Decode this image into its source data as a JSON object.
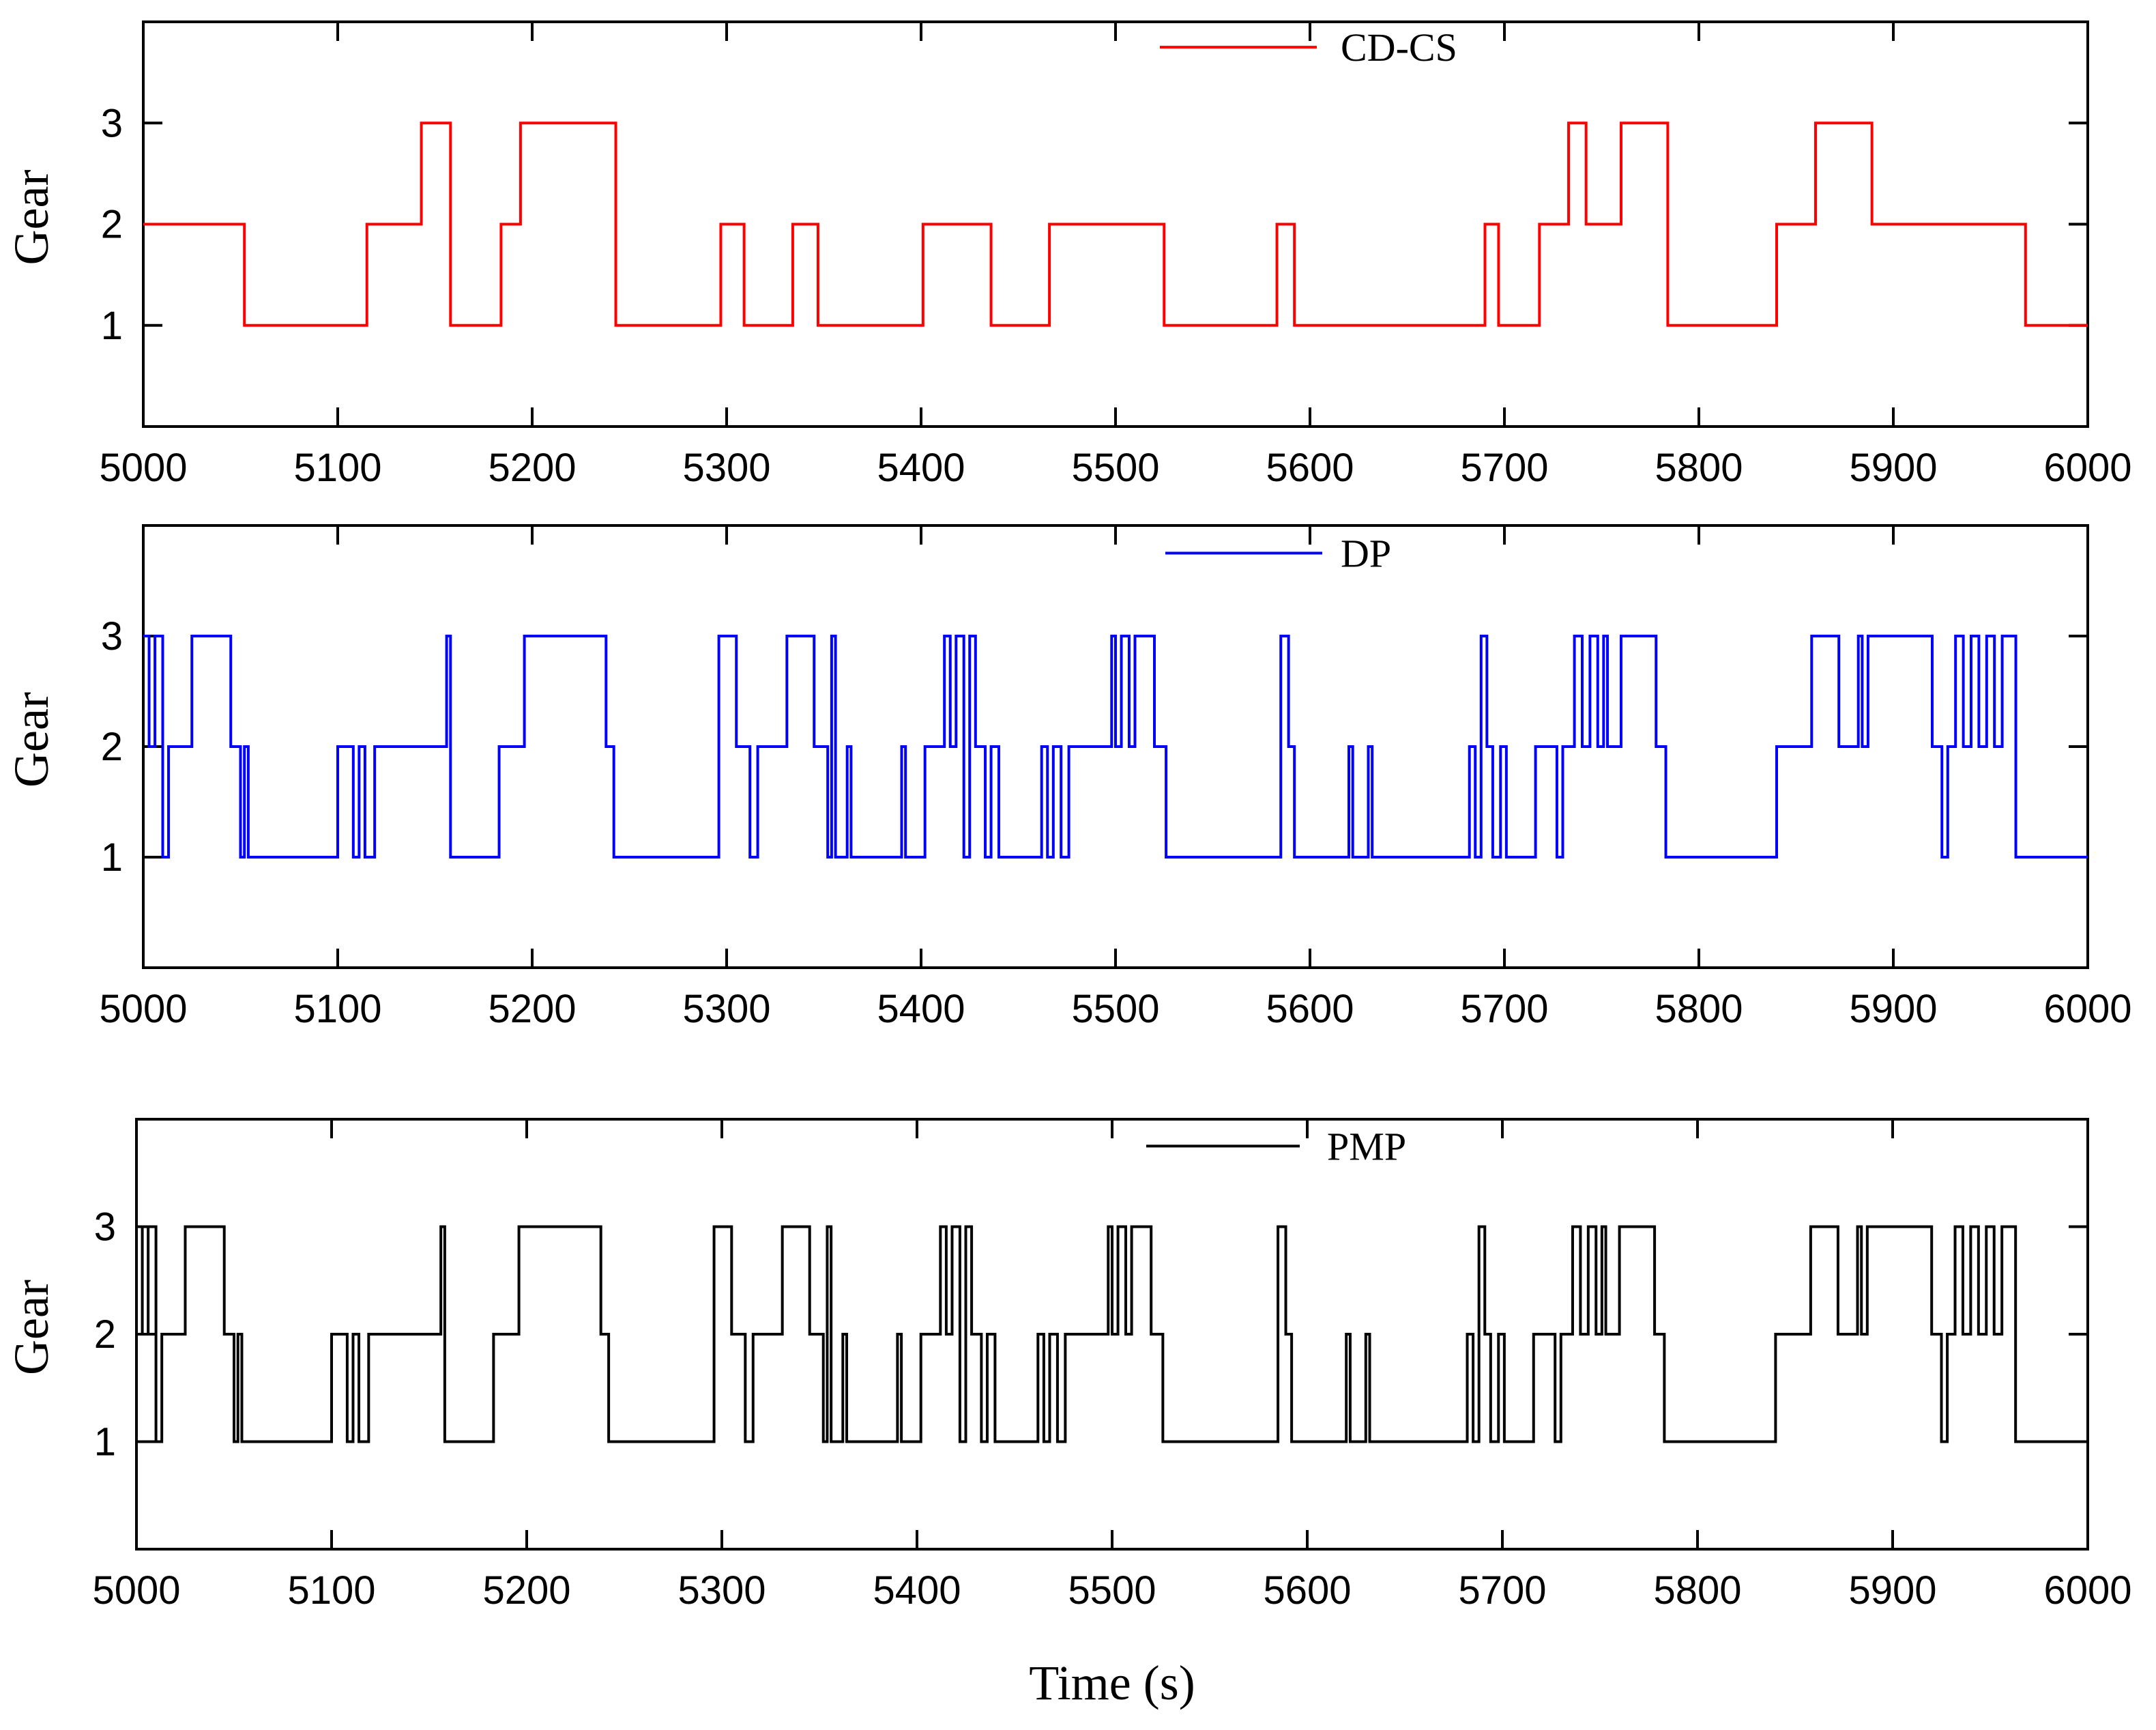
{
  "chart_data": [
    {
      "type": "line",
      "series_name": "CD-CS",
      "color": "#ff0000",
      "ylabel": "Gear",
      "xlabel": "",
      "xlim": [
        5000,
        6000
      ],
      "ylim": [
        0,
        4
      ],
      "xticks": [
        5000,
        5100,
        5200,
        5300,
        5400,
        5500,
        5600,
        5700,
        5800,
        5900,
        6000
      ],
      "xtick_labels": [
        "5000",
        "5100",
        "5200",
        "5300",
        "5400",
        "5500",
        "5600",
        "5700",
        "5800",
        "5900",
        "6000"
      ],
      "yticks": [
        1,
        2,
        3
      ],
      "ytick_labels": [
        "1",
        "2",
        "3"
      ],
      "legend": "top-center",
      "steps": [
        [
          5000,
          2
        ],
        [
          5052,
          1
        ],
        [
          5115,
          2
        ],
        [
          5143,
          3
        ],
        [
          5158,
          1
        ],
        [
          5184,
          2
        ],
        [
          5194,
          3
        ],
        [
          5243,
          1
        ],
        [
          5297,
          2
        ],
        [
          5309,
          1
        ],
        [
          5334,
          2
        ],
        [
          5347,
          1
        ],
        [
          5401,
          2
        ],
        [
          5436,
          1
        ],
        [
          5466,
          2
        ],
        [
          5525,
          1
        ],
        [
          5583,
          2
        ],
        [
          5592,
          1
        ],
        [
          5690,
          2
        ],
        [
          5697,
          1
        ],
        [
          5718,
          2
        ],
        [
          5733,
          3
        ],
        [
          5742,
          2
        ],
        [
          5760,
          3
        ],
        [
          5784,
          1
        ],
        [
          5840,
          2
        ],
        [
          5860,
          3
        ],
        [
          5889,
          2
        ],
        [
          5968,
          1
        ],
        [
          6000,
          1
        ]
      ]
    },
    {
      "type": "line",
      "series_name": "DP",
      "color": "#0000ff",
      "ylabel": "Gear",
      "xlabel": "",
      "xlim": [
        5000,
        6000
      ],
      "ylim": [
        0,
        4
      ],
      "xticks": [
        5000,
        5100,
        5200,
        5300,
        5400,
        5500,
        5600,
        5700,
        5800,
        5900,
        6000
      ],
      "xtick_labels": [
        "5000",
        "5100",
        "5200",
        "5300",
        "5400",
        "5500",
        "5600",
        "5700",
        "5800",
        "5900",
        "6000"
      ],
      "yticks": [
        1,
        2,
        3
      ],
      "ytick_labels": [
        "1",
        "2",
        "3"
      ],
      "legend": "top-center",
      "steps": [
        [
          5000,
          3
        ],
        [
          5003,
          2
        ],
        [
          5006,
          3
        ],
        [
          5010,
          1
        ],
        [
          5013,
          2
        ],
        [
          5025,
          3
        ],
        [
          5045,
          2
        ],
        [
          5050,
          1
        ],
        [
          5052,
          2
        ],
        [
          5054,
          1
        ],
        [
          5100,
          2
        ],
        [
          5108,
          1
        ],
        [
          5111,
          2
        ],
        [
          5114,
          1
        ],
        [
          5119,
          2
        ],
        [
          5156,
          3
        ],
        [
          5158,
          1
        ],
        [
          5183,
          2
        ],
        [
          5196,
          3
        ],
        [
          5238,
          2
        ],
        [
          5242,
          1
        ],
        [
          5296,
          3
        ],
        [
          5305,
          2
        ],
        [
          5312,
          1
        ],
        [
          5316,
          2
        ],
        [
          5331,
          3
        ],
        [
          5345,
          2
        ],
        [
          5352,
          1
        ],
        [
          5354,
          3
        ],
        [
          5356,
          1
        ],
        [
          5362,
          2
        ],
        [
          5364,
          1
        ],
        [
          5390,
          2
        ],
        [
          5392,
          1
        ],
        [
          5402,
          2
        ],
        [
          5412,
          3
        ],
        [
          5415,
          2
        ],
        [
          5418,
          3
        ],
        [
          5422,
          1
        ],
        [
          5425,
          3
        ],
        [
          5428,
          2
        ],
        [
          5433,
          1
        ],
        [
          5436,
          2
        ],
        [
          5440,
          1
        ],
        [
          5462,
          2
        ],
        [
          5465,
          1
        ],
        [
          5468,
          2
        ],
        [
          5472,
          1
        ],
        [
          5476,
          2
        ],
        [
          5498,
          3
        ],
        [
          5500,
          2
        ],
        [
          5503,
          3
        ],
        [
          5507,
          2
        ],
        [
          5510,
          3
        ],
        [
          5520,
          2
        ],
        [
          5526,
          1
        ],
        [
          5585,
          3
        ],
        [
          5589,
          2
        ],
        [
          5592,
          1
        ],
        [
          5620,
          2
        ],
        [
          5622,
          1
        ],
        [
          5630,
          2
        ],
        [
          5632,
          1
        ],
        [
          5682,
          2
        ],
        [
          5685,
          1
        ],
        [
          5688,
          3
        ],
        [
          5691,
          2
        ],
        [
          5694,
          1
        ],
        [
          5698,
          2
        ],
        [
          5701,
          1
        ],
        [
          5716,
          2
        ],
        [
          5727,
          1
        ],
        [
          5730,
          2
        ],
        [
          5736,
          3
        ],
        [
          5740,
          2
        ],
        [
          5744,
          3
        ],
        [
          5748,
          2
        ],
        [
          5751,
          3
        ],
        [
          5753,
          2
        ],
        [
          5760,
          3
        ],
        [
          5778,
          2
        ],
        [
          5783,
          1
        ],
        [
          5840,
          2
        ],
        [
          5858,
          3
        ],
        [
          5872,
          2
        ],
        [
          5882,
          3
        ],
        [
          5884,
          2
        ],
        [
          5887,
          3
        ],
        [
          5920,
          2
        ],
        [
          5925,
          1
        ],
        [
          5928,
          2
        ],
        [
          5932,
          3
        ],
        [
          5936,
          2
        ],
        [
          5940,
          3
        ],
        [
          5944,
          2
        ],
        [
          5948,
          3
        ],
        [
          5952,
          2
        ],
        [
          5956,
          3
        ],
        [
          5963,
          1
        ],
        [
          6000,
          1
        ]
      ]
    },
    {
      "type": "line",
      "series_name": "PMP",
      "color": "#000000",
      "ylabel": "Gear",
      "xlabel": "Time (s)",
      "xlim": [
        5000,
        6000
      ],
      "ylim": [
        0,
        4
      ],
      "xticks": [
        5000,
        5100,
        5200,
        5300,
        5400,
        5500,
        5600,
        5700,
        5800,
        5900,
        6000
      ],
      "xtick_labels": [
        "5000",
        "5100",
        "5200",
        "5300",
        "5400",
        "5500",
        "5600",
        "5700",
        "5800",
        "5900",
        "6000"
      ],
      "yticks": [
        1,
        2,
        3
      ],
      "ytick_labels": [
        "1",
        "2",
        "3"
      ],
      "legend": "top-center",
      "steps": [
        [
          5000,
          3
        ],
        [
          5003,
          2
        ],
        [
          5006,
          3
        ],
        [
          5010,
          1
        ],
        [
          5013,
          2
        ],
        [
          5025,
          3
        ],
        [
          5045,
          2
        ],
        [
          5050,
          1
        ],
        [
          5052,
          2
        ],
        [
          5054,
          1
        ],
        [
          5100,
          2
        ],
        [
          5108,
          1
        ],
        [
          5111,
          2
        ],
        [
          5114,
          1
        ],
        [
          5119,
          2
        ],
        [
          5156,
          3
        ],
        [
          5158,
          1
        ],
        [
          5183,
          2
        ],
        [
          5196,
          3
        ],
        [
          5238,
          2
        ],
        [
          5242,
          1
        ],
        [
          5296,
          3
        ],
        [
          5305,
          2
        ],
        [
          5312,
          1
        ],
        [
          5316,
          2
        ],
        [
          5331,
          3
        ],
        [
          5345,
          2
        ],
        [
          5352,
          1
        ],
        [
          5354,
          3
        ],
        [
          5356,
          1
        ],
        [
          5362,
          2
        ],
        [
          5364,
          1
        ],
        [
          5390,
          2
        ],
        [
          5392,
          1
        ],
        [
          5402,
          2
        ],
        [
          5412,
          3
        ],
        [
          5415,
          2
        ],
        [
          5418,
          3
        ],
        [
          5422,
          1
        ],
        [
          5425,
          3
        ],
        [
          5428,
          2
        ],
        [
          5433,
          1
        ],
        [
          5436,
          2
        ],
        [
          5440,
          1
        ],
        [
          5462,
          2
        ],
        [
          5465,
          1
        ],
        [
          5468,
          2
        ],
        [
          5472,
          1
        ],
        [
          5476,
          2
        ],
        [
          5498,
          3
        ],
        [
          5500,
          2
        ],
        [
          5503,
          3
        ],
        [
          5507,
          2
        ],
        [
          5510,
          3
        ],
        [
          5520,
          2
        ],
        [
          5526,
          1
        ],
        [
          5585,
          3
        ],
        [
          5589,
          2
        ],
        [
          5592,
          1
        ],
        [
          5620,
          2
        ],
        [
          5622,
          1
        ],
        [
          5630,
          2
        ],
        [
          5632,
          1
        ],
        [
          5682,
          2
        ],
        [
          5685,
          1
        ],
        [
          5688,
          3
        ],
        [
          5691,
          2
        ],
        [
          5694,
          1
        ],
        [
          5698,
          2
        ],
        [
          5701,
          1
        ],
        [
          5716,
          2
        ],
        [
          5727,
          1
        ],
        [
          5730,
          2
        ],
        [
          5736,
          3
        ],
        [
          5740,
          2
        ],
        [
          5744,
          3
        ],
        [
          5748,
          2
        ],
        [
          5751,
          3
        ],
        [
          5753,
          2
        ],
        [
          5760,
          3
        ],
        [
          5778,
          2
        ],
        [
          5783,
          1
        ],
        [
          5840,
          2
        ],
        [
          5858,
          3
        ],
        [
          5872,
          2
        ],
        [
          5882,
          3
        ],
        [
          5884,
          2
        ],
        [
          5887,
          3
        ],
        [
          5920,
          2
        ],
        [
          5925,
          1
        ],
        [
          5928,
          2
        ],
        [
          5932,
          3
        ],
        [
          5936,
          2
        ],
        [
          5940,
          3
        ],
        [
          5944,
          2
        ],
        [
          5948,
          3
        ],
        [
          5952,
          2
        ],
        [
          5956,
          3
        ],
        [
          5963,
          1
        ],
        [
          6000,
          1
        ]
      ]
    }
  ]
}
